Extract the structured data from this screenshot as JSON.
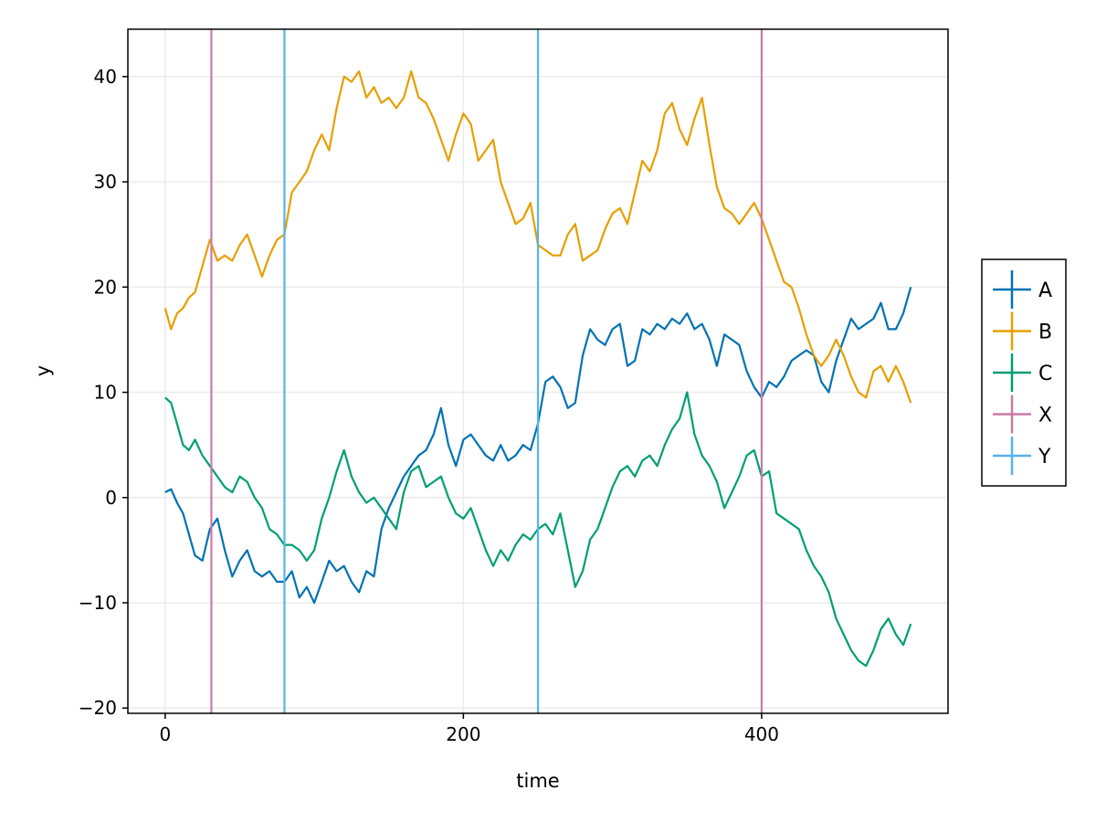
{
  "chart_data": {
    "type": "line",
    "title": "",
    "xlabel": "time",
    "ylabel": "y",
    "xlim": [
      -25,
      525
    ],
    "ylim": [
      -20.5,
      44.5
    ],
    "xticks": [
      0,
      200,
      400
    ],
    "yticks": [
      -20,
      -10,
      0,
      10,
      20,
      30,
      40
    ],
    "xtick_labels": [
      "0",
      "200",
      "400"
    ],
    "ytick_labels": [
      "−20",
      "−10",
      "0",
      "10",
      "20",
      "30",
      "40"
    ],
    "grid": true,
    "legend": "outside-right",
    "series": [
      {
        "name": "A",
        "color": "#0072b2",
        "x": [
          0,
          4,
          8,
          12,
          16,
          20,
          25,
          30,
          35,
          40,
          45,
          50,
          55,
          60,
          65,
          70,
          75,
          80,
          85,
          90,
          95,
          100,
          105,
          110,
          115,
          120,
          125,
          130,
          135,
          140,
          145,
          150,
          155,
          160,
          165,
          170,
          175,
          180,
          185,
          190,
          195,
          200,
          205,
          210,
          215,
          220,
          225,
          230,
          235,
          240,
          245,
          250,
          255,
          260,
          265,
          270,
          275,
          280,
          285,
          290,
          295,
          300,
          305,
          310,
          315,
          320,
          325,
          330,
          335,
          340,
          345,
          350,
          355,
          360,
          365,
          370,
          375,
          380,
          385,
          390,
          395,
          400,
          405,
          410,
          415,
          420,
          425,
          430,
          435,
          440,
          445,
          450,
          455,
          460,
          465,
          470,
          475,
          480,
          485,
          490,
          495,
          500
        ],
        "y": [
          0.5,
          0.8,
          -0.5,
          -1.5,
          -3.5,
          -5.5,
          -6.0,
          -3.0,
          -2.0,
          -5.0,
          -7.5,
          -6.0,
          -5.0,
          -7.0,
          -7.5,
          -7.0,
          -8.0,
          -8.0,
          -7.0,
          -9.5,
          -8.5,
          -10.0,
          -8.0,
          -6.0,
          -7.0,
          -6.5,
          -8.0,
          -9.0,
          -7.0,
          -7.5,
          -3.0,
          -1.0,
          0.5,
          2.0,
          3.0,
          4.0,
          4.5,
          6.0,
          8.5,
          5.0,
          3.0,
          5.5,
          6.0,
          5.0,
          4.0,
          3.5,
          5.0,
          3.5,
          4.0,
          5.0,
          4.5,
          7.0,
          11.0,
          11.5,
          10.5,
          8.5,
          9.0,
          13.5,
          16.0,
          15.0,
          14.5,
          16.0,
          16.5,
          12.5,
          13.0,
          16.0,
          15.5,
          16.5,
          16.0,
          17.0,
          16.5,
          17.5,
          16.0,
          16.5,
          15.0,
          12.5,
          15.5,
          15.0,
          14.5,
          12.0,
          10.5,
          9.5,
          11.0,
          10.5,
          11.5,
          13.0,
          13.5,
          14.0,
          13.5,
          11.0,
          10.0,
          13.0,
          15.0,
          17.0,
          16.0,
          16.5,
          17.0,
          18.5,
          16.0,
          16.0,
          17.5,
          20.0
        ]
      },
      {
        "name": "B",
        "color": "#e69f00",
        "x": [
          0,
          4,
          8,
          12,
          16,
          20,
          25,
          30,
          35,
          40,
          45,
          50,
          55,
          60,
          65,
          70,
          75,
          80,
          85,
          90,
          95,
          100,
          105,
          110,
          115,
          120,
          125,
          130,
          135,
          140,
          145,
          150,
          155,
          160,
          165,
          170,
          175,
          180,
          185,
          190,
          195,
          200,
          205,
          210,
          215,
          220,
          225,
          230,
          235,
          240,
          245,
          250,
          255,
          260,
          265,
          270,
          275,
          280,
          285,
          290,
          295,
          300,
          305,
          310,
          315,
          320,
          325,
          330,
          335,
          340,
          345,
          350,
          355,
          360,
          365,
          370,
          375,
          380,
          385,
          390,
          395,
          400,
          405,
          410,
          415,
          420,
          425,
          430,
          435,
          440,
          445,
          450,
          455,
          460,
          465,
          470,
          475,
          480,
          485,
          490,
          495,
          500
        ],
        "y": [
          18.0,
          16.0,
          17.5,
          18.0,
          19.0,
          19.5,
          22.0,
          24.5,
          22.5,
          23.0,
          22.5,
          24.0,
          25.0,
          23.0,
          21.0,
          23.0,
          24.5,
          25.0,
          29.0,
          30.0,
          31.0,
          33.0,
          34.5,
          33.0,
          37.0,
          40.0,
          39.5,
          40.5,
          38.0,
          39.0,
          37.5,
          38.0,
          37.0,
          38.0,
          40.5,
          38.0,
          37.5,
          36.0,
          34.0,
          32.0,
          34.5,
          36.5,
          35.5,
          32.0,
          33.0,
          34.0,
          30.0,
          28.0,
          26.0,
          26.5,
          28.0,
          24.0,
          23.5,
          23.0,
          23.0,
          25.0,
          26.0,
          22.5,
          23.0,
          23.5,
          25.5,
          27.0,
          27.5,
          26.0,
          29.0,
          32.0,
          31.0,
          33.0,
          36.5,
          37.5,
          35.0,
          33.5,
          36.0,
          38.0,
          33.5,
          29.5,
          27.5,
          27.0,
          26.0,
          27.0,
          28.0,
          26.5,
          24.5,
          22.5,
          20.5,
          20.0,
          18.0,
          15.5,
          13.5,
          12.5,
          13.5,
          15.0,
          13.5,
          11.5,
          10.0,
          9.5,
          12.0,
          12.5,
          11.0,
          12.5,
          11.0,
          9.0
        ]
      },
      {
        "name": "C",
        "color": "#009e73",
        "x": [
          0,
          4,
          8,
          12,
          16,
          20,
          25,
          30,
          35,
          40,
          45,
          50,
          55,
          60,
          65,
          70,
          75,
          80,
          85,
          90,
          95,
          100,
          105,
          110,
          115,
          120,
          125,
          130,
          135,
          140,
          145,
          150,
          155,
          160,
          165,
          170,
          175,
          180,
          185,
          190,
          195,
          200,
          205,
          210,
          215,
          220,
          225,
          230,
          235,
          240,
          245,
          250,
          255,
          260,
          265,
          270,
          275,
          280,
          285,
          290,
          295,
          300,
          305,
          310,
          315,
          320,
          325,
          330,
          335,
          340,
          345,
          350,
          355,
          360,
          365,
          370,
          375,
          380,
          385,
          390,
          395,
          400,
          405,
          410,
          415,
          420,
          425,
          430,
          435,
          440,
          445,
          450,
          455,
          460,
          465,
          470,
          475,
          480,
          485,
          490,
          495,
          500
        ],
        "y": [
          9.5,
          9.0,
          7.0,
          5.0,
          4.5,
          5.5,
          4.0,
          3.0,
          2.0,
          1.0,
          0.5,
          2.0,
          1.5,
          0.0,
          -1.0,
          -3.0,
          -3.5,
          -4.5,
          -4.5,
          -5.0,
          -6.0,
          -5.0,
          -2.0,
          0.0,
          2.5,
          4.5,
          2.0,
          0.5,
          -0.5,
          0.0,
          -1.0,
          -2.0,
          -3.0,
          0.5,
          2.5,
          3.0,
          1.0,
          1.5,
          2.0,
          0.0,
          -1.5,
          -2.0,
          -1.0,
          -3.0,
          -5.0,
          -6.5,
          -5.0,
          -6.0,
          -4.5,
          -3.5,
          -4.0,
          -3.0,
          -2.5,
          -3.5,
          -1.5,
          -5.0,
          -8.5,
          -7.0,
          -4.0,
          -3.0,
          -1.0,
          1.0,
          2.5,
          3.0,
          2.0,
          3.5,
          4.0,
          3.0,
          5.0,
          6.5,
          7.5,
          10.0,
          6.0,
          4.0,
          3.0,
          1.5,
          -1.0,
          0.5,
          2.0,
          4.0,
          4.5,
          2.0,
          2.5,
          -1.5,
          -2.0,
          -2.5,
          -3.0,
          -5.0,
          -6.5,
          -7.5,
          -9.0,
          -11.5,
          -13.0,
          -14.5,
          -15.5,
          -16.0,
          -14.5,
          -12.5,
          -11.5,
          -13.0,
          -14.0,
          -12.0
        ]
      }
    ],
    "vlines": [
      {
        "name": "X",
        "color": "#cc79a7",
        "x": [
          31,
          400
        ]
      },
      {
        "name": "Y",
        "color": "#56b4e9",
        "x": [
          80,
          250
        ]
      }
    ],
    "legend_entries": [
      {
        "label": "A",
        "color": "#0072b2"
      },
      {
        "label": "B",
        "color": "#e69f00"
      },
      {
        "label": "C",
        "color": "#009e73"
      },
      {
        "label": "X",
        "color": "#cc79a7"
      },
      {
        "label": "Y",
        "color": "#56b4e9"
      }
    ]
  }
}
